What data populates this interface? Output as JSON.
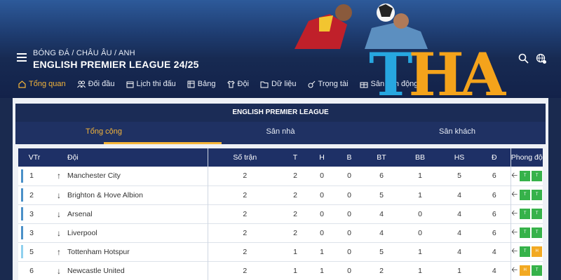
{
  "header": {
    "breadcrumb": "BÓNG ĐÁ / CHÂU ÂU / ANH",
    "title": "ENGLISH PREMIER LEAGUE 24/25"
  },
  "logo": {
    "part1": "T",
    "part2": "HA"
  },
  "nav": [
    {
      "label": "Tổng quan",
      "icon": "home-icon",
      "active": true
    },
    {
      "label": "Đối đầu",
      "icon": "users-icon"
    },
    {
      "label": "Lịch thi đấu",
      "icon": "calendar-icon"
    },
    {
      "label": "Bảng",
      "icon": "table-icon"
    },
    {
      "label": "Đội",
      "icon": "shirt-icon"
    },
    {
      "label": "Dữ liệu",
      "icon": "folder-icon"
    },
    {
      "label": "Trọng tài",
      "icon": "whistle-icon"
    },
    {
      "label": "Sân vận động",
      "icon": "stadium-icon"
    }
  ],
  "panel": {
    "heading": "ENGLISH PREMIER LEAGUE",
    "tabs": [
      {
        "label": "Tổng cộng",
        "active": true
      },
      {
        "label": "Sân nhà"
      },
      {
        "label": "Sân khách"
      }
    ]
  },
  "table": {
    "columns": [
      "VTr",
      "Đội",
      "Số trận",
      "T",
      "H",
      "B",
      "BT",
      "BB",
      "HS",
      "Đ",
      "Phong độ"
    ],
    "rows": [
      {
        "rank": "1",
        "trend": "↑",
        "team": "Manchester City",
        "played": "2",
        "w": "2",
        "d": "0",
        "l": "0",
        "gf": "6",
        "ga": "1",
        "gd": "5",
        "pts": "6",
        "form": [
          "T",
          "T"
        ],
        "zone": "#4a90c8"
      },
      {
        "rank": "2",
        "trend": "↓",
        "team": "Brighton & Hove Albion",
        "played": "2",
        "w": "2",
        "d": "0",
        "l": "0",
        "gf": "5",
        "ga": "1",
        "gd": "4",
        "pts": "6",
        "form": [
          "T",
          "T"
        ],
        "zone": "#4a90c8"
      },
      {
        "rank": "3",
        "trend": "↓",
        "team": "Arsenal",
        "played": "2",
        "w": "2",
        "d": "0",
        "l": "0",
        "gf": "4",
        "ga": "0",
        "gd": "4",
        "pts": "6",
        "form": [
          "T",
          "T"
        ],
        "zone": "#4a90c8"
      },
      {
        "rank": "3",
        "trend": "↓",
        "team": "Liverpool",
        "played": "2",
        "w": "2",
        "d": "0",
        "l": "0",
        "gf": "4",
        "ga": "0",
        "gd": "4",
        "pts": "6",
        "form": [
          "T",
          "T"
        ],
        "zone": "#4a90c8"
      },
      {
        "rank": "5",
        "trend": "↑",
        "team": "Tottenham Hotspur",
        "played": "2",
        "w": "1",
        "d": "1",
        "l": "0",
        "gf": "5",
        "ga": "1",
        "gd": "4",
        "pts": "4",
        "form": [
          "T",
          "H"
        ],
        "zone": "#8fd0ee"
      },
      {
        "rank": "6",
        "trend": "↓",
        "team": "Newcastle United",
        "played": "2",
        "w": "1",
        "d": "1",
        "l": "0",
        "gf": "2",
        "ga": "1",
        "gd": "1",
        "pts": "4",
        "form": [
          "H",
          "T"
        ],
        "zone": "#ffffff"
      }
    ]
  },
  "colors": {
    "accent": "#f3b43a",
    "win": "#36b24a",
    "draw": "#f2a922",
    "header_bg": "#1e3066"
  }
}
